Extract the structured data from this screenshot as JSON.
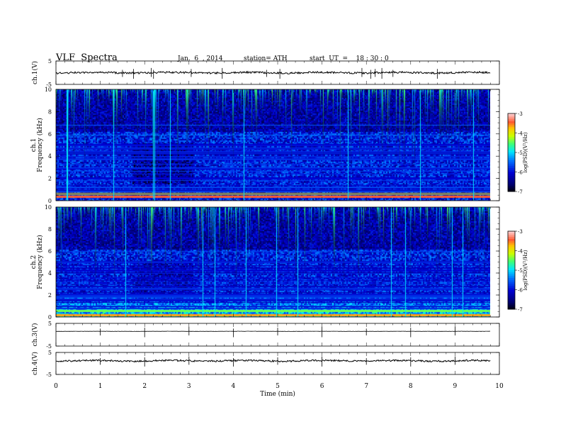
{
  "header": {
    "title": "VLF  Spectra",
    "date": "Jan.  6  , 2014",
    "station": "station= ATH",
    "start_ut": "start  UT  =    18 : 30 : 0"
  },
  "chart_data": [
    {
      "name": "ch1-voltage",
      "type": "line",
      "ylabel": "ch.1(V)",
      "ylim": [
        -5,
        5
      ],
      "yticks": [
        5,
        -5
      ],
      "xlim": [
        0,
        10
      ],
      "data_end_min": 9.8,
      "baseline": 0,
      "noise_amplitude": 0.4,
      "spikes_min": [
        1.5,
        1.75,
        2.15,
        2.2,
        3.05,
        3.75,
        4.75,
        5.05,
        6.9,
        7.1,
        7.2,
        7.35,
        7.6,
        8.6
      ]
    },
    {
      "name": "ch1-spectrogram",
      "type": "heatmap",
      "ylabel": "Frequency  (kHz)",
      "channel_label": "ch.1",
      "ylim": [
        0,
        10
      ],
      "yticks": [
        0,
        2,
        4,
        6,
        8,
        10
      ],
      "xlim": [
        0,
        10
      ],
      "data_end_min": 9.8,
      "colorbar": {
        "label": "log(PSD)(V²/Hz)",
        "ticks": [
          -3,
          -4,
          -5,
          -6,
          -7
        ],
        "range": [
          -7,
          -3
        ]
      },
      "segments_min": [
        0,
        1.72,
        3.1,
        9.8
      ],
      "bands": [
        {
          "f": 0.3,
          "level": -3.4
        },
        {
          "f": 0.55,
          "level": -3.9
        },
        {
          "f": 0.8,
          "level": -5.2
        },
        {
          "f": 1.2,
          "level": -5.4
        },
        {
          "f": 2.0,
          "level": -5.6
        },
        {
          "f": 3.0,
          "level": -5.7
        },
        {
          "f": 4.0,
          "level": -5.8
        },
        {
          "f": 5.0,
          "level": -5.8
        },
        {
          "f": 5.9,
          "level": -5.4
        },
        {
          "f": 6.8,
          "level": -5.5
        }
      ]
    },
    {
      "name": "ch2-spectrogram",
      "type": "heatmap",
      "ylabel": "Frequency  (kHz)",
      "channel_label": "ch.2",
      "ylim": [
        0,
        10
      ],
      "yticks": [
        0,
        2,
        4,
        6,
        8,
        10
      ],
      "xlim": [
        0,
        10
      ],
      "data_end_min": 9.8,
      "colorbar": {
        "label": "log(PSD)(V²/Hz)",
        "ticks": [
          -3,
          -4,
          -5,
          -6,
          -7
        ],
        "range": [
          -7,
          -3
        ]
      },
      "segments_min": [
        0,
        1.72,
        3.1,
        9.8
      ],
      "bands": [
        {
          "f": 0.15,
          "level": -3.6
        },
        {
          "f": 0.5,
          "level": -4.4
        },
        {
          "f": 1.0,
          "level": -5.0
        },
        {
          "f": 1.5,
          "level": -5.2
        },
        {
          "f": 2.1,
          "level": -5.4
        },
        {
          "f": 4.2,
          "level": -5.9
        },
        {
          "f": 5.0,
          "level": -5.5
        },
        {
          "f": 6.0,
          "level": -5.6
        }
      ]
    },
    {
      "name": "ch3-voltage",
      "type": "line",
      "ylabel": "ch.3(V)",
      "ylim": [
        -5,
        5
      ],
      "yticks": [
        5,
        -5
      ],
      "xlim": [
        0,
        10
      ],
      "data_end_min": 9.8,
      "baseline": 1.5,
      "noise_amplitude": 0.05,
      "spikes_min": [
        1.0,
        2.0,
        3.0,
        4.0,
        5.0,
        6.0,
        7.0,
        8.0,
        9.0
      ]
    },
    {
      "name": "ch4-voltage",
      "type": "line",
      "ylabel": "ch.4(V)",
      "ylim": [
        -5,
        5
      ],
      "yticks": [
        5,
        -5
      ],
      "xlim": [
        0,
        10
      ],
      "data_end_min": 9.8,
      "baseline": 1.2,
      "noise_amplitude": 0.4,
      "spikes_min": [
        1.0,
        2.0,
        3.0,
        4.0,
        5.0,
        6.0,
        7.0,
        8.0,
        9.0
      ]
    }
  ],
  "x_axis": {
    "label": "Time  (min)",
    "ticks": [
      0,
      1,
      2,
      3,
      4,
      5,
      6,
      7,
      8,
      9,
      10
    ]
  }
}
